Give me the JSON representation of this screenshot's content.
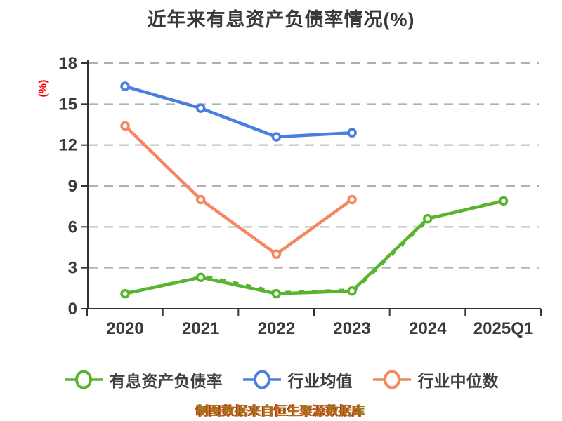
{
  "page": {
    "title": "近年来有息资产负债率情况(%)",
    "footer_note": "制图数据来自恒生聚源数据库"
  },
  "colors": {
    "title_text": "#3a3a3a",
    "axis": "#333333",
    "tick_label": "#3a3a3a",
    "gridline": "#b0b0b0",
    "y_unit_label": "#fe0000",
    "legend_text": "#3f3f3f",
    "footer_text": "#a1781c",
    "footer_shadow": "#d02a12",
    "marker_fill": "#ffffff"
  },
  "chart_data": {
    "type": "line",
    "title": "近年来有息资产负债率情况(%)",
    "ylabel": "(%)",
    "xlabel": "",
    "categories": [
      "2020",
      "2021",
      "2022",
      "2023",
      "2024",
      "2025Q1"
    ],
    "series": [
      {
        "name": "有息资产负债率",
        "color": "#58b42e",
        "values": [
          1.1,
          2.3,
          1.1,
          1.3,
          6.6,
          7.9
        ]
      },
      {
        "name": "行业均值",
        "color": "#4a7ee0",
        "values": [
          16.3,
          14.7,
          12.6,
          12.9,
          null,
          null
        ]
      },
      {
        "name": "行业中位数",
        "color": "#f5875f",
        "values": [
          13.4,
          8.0,
          4.0,
          8.0,
          null,
          null
        ]
      }
    ],
    "ylim": [
      0,
      18
    ],
    "yticks": [
      0,
      3,
      6,
      9,
      12,
      15,
      18
    ],
    "grid": "horizontal-dashed",
    "legend_position": "bottom",
    "marker_style": "open-circle-white-fill"
  }
}
